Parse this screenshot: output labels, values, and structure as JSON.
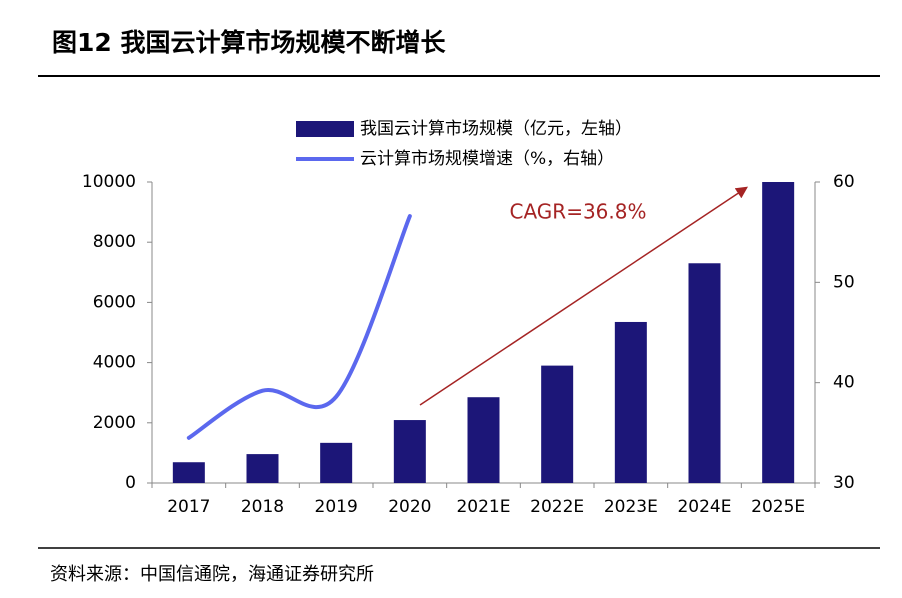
{
  "chart_data": {
    "type": "bar",
    "title": "图12 我国云计算市场规模不断增长",
    "categories": [
      "2017",
      "2018",
      "2019",
      "2020",
      "2021E",
      "2022E",
      "2023E",
      "2024E",
      "2025E"
    ],
    "series": [
      {
        "name": "我国云计算市场规模（亿元，左轴）",
        "type": "bar",
        "color": "#1c1678",
        "values": [
          690,
          960,
          1334,
          2091,
          2850,
          3900,
          5350,
          7300,
          10000
        ]
      },
      {
        "name": "云计算市场规模增速（%，右轴）",
        "type": "line",
        "axis": "y2",
        "color": "#5b68ee",
        "values": [
          34.5,
          39.2,
          38.6,
          56.6,
          null,
          null,
          null,
          null,
          null
        ]
      }
    ],
    "ylim": [
      0,
      10000
    ],
    "yticks": [
      0,
      2000,
      4000,
      6000,
      8000,
      10000
    ],
    "y2lim": [
      30,
      60
    ],
    "y2ticks": [
      30,
      40,
      50,
      60
    ],
    "annotation": "CAGR=36.8%",
    "source": "资料来源：中国信通院，海通证券研究所"
  }
}
